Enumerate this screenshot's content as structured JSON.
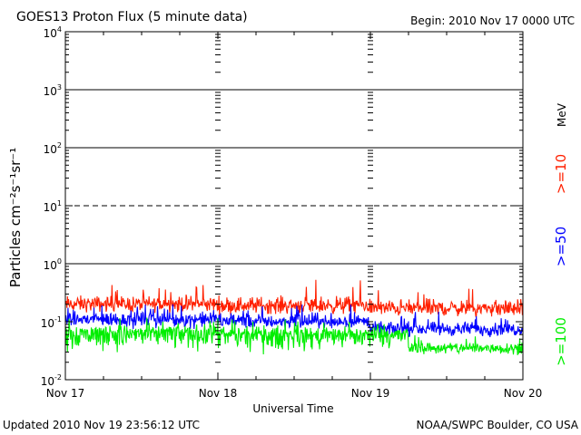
{
  "header": {
    "title": "GOES13 Proton Flux (5 minute data)",
    "begin": "Begin: 2010 Nov 17 0000 UTC"
  },
  "footer": {
    "updated": "Updated 2010 Nov 19 23:56:12 UTC",
    "credit": "NOAA/SWPC Boulder, CO USA"
  },
  "chart_data": {
    "type": "line",
    "title": "GOES13 Proton Flux (5 minute data)",
    "xlabel": "Universal Time",
    "ylabel": "Particles cm⁻²s⁻¹sr⁻¹",
    "yscale": "log",
    "ylim": [
      0.01,
      10000
    ],
    "xlim": [
      "2010-11-17T00:00Z",
      "2010-11-20T00:00Z"
    ],
    "x_ticks": [
      "Nov 17",
      "Nov 18",
      "Nov 19",
      "Nov 20"
    ],
    "y_ticks": [
      {
        "value": 0.01,
        "base": "10",
        "exp": "-2"
      },
      {
        "value": 0.1,
        "base": "10",
        "exp": "-1"
      },
      {
        "value": 1,
        "base": "10",
        "exp": "0"
      },
      {
        "value": 10,
        "base": "10",
        "exp": "1"
      },
      {
        "value": 100,
        "base": "10",
        "exp": "2"
      },
      {
        "value": 1000,
        "base": "10",
        "exp": "3"
      },
      {
        "value": 10000,
        "base": "10",
        "exp": "4"
      }
    ],
    "threshold_lines": [
      {
        "value": 1,
        "style": "solid"
      },
      {
        "value": 10,
        "style": "dashed"
      },
      {
        "value": 100,
        "style": "solid"
      },
      {
        "value": 1000,
        "style": "solid"
      }
    ],
    "units_label": "MeV",
    "series": [
      {
        "name": ">=10",
        "color": "#ff2000",
        "segments": [
          {
            "start": "Nov 17 00:00",
            "end": "Nov 18 00:00",
            "base": 0.2,
            "noise_lo": 0.13,
            "noise_hi": 0.32,
            "peak": 0.45
          },
          {
            "start": "Nov 18 00:00",
            "end": "Nov 19 00:00",
            "base": 0.19,
            "noise_lo": 0.12,
            "noise_hi": 0.32,
            "peak": 0.55
          },
          {
            "start": "Nov 19 00:00",
            "end": "Nov 20 00:00",
            "base": 0.17,
            "noise_lo": 0.11,
            "noise_hi": 0.28,
            "peak": 0.38
          }
        ]
      },
      {
        "name": ">=50",
        "color": "#0000ff",
        "segments": [
          {
            "start": "Nov 17 00:00",
            "end": "Nov 18 00:00",
            "base": 0.11,
            "noise_lo": 0.07,
            "noise_hi": 0.17,
            "peak": 0.22
          },
          {
            "start": "Nov 18 00:00",
            "end": "Nov 19 00:00",
            "base": 0.1,
            "noise_lo": 0.07,
            "noise_hi": 0.16,
            "peak": 0.2
          },
          {
            "start": "Nov 19 00:00",
            "end": "Nov 20 00:00",
            "base": 0.075,
            "noise_lo": 0.05,
            "noise_hi": 0.11,
            "peak": 0.15
          }
        ]
      },
      {
        "name": ">=100",
        "color": "#00ee00",
        "segments": [
          {
            "start": "Nov 17 00:00",
            "end": "Nov 18 00:00",
            "base": 0.065,
            "noise_lo": 0.025,
            "noise_hi": 0.1,
            "peak": 0.12
          },
          {
            "start": "Nov 18 00:00",
            "end": "Nov 19 00:00",
            "base": 0.06,
            "noise_lo": 0.025,
            "noise_hi": 0.09,
            "peak": 0.11
          },
          {
            "start": "Nov 19 00:00",
            "end": "Nov 19 06:00",
            "base": 0.06,
            "noise_lo": 0.03,
            "noise_hi": 0.09,
            "peak": 0.1
          },
          {
            "start": "Nov 19 06:00",
            "end": "Nov 20 00:00",
            "base": 0.035,
            "noise_lo": 0.025,
            "noise_hi": 0.05,
            "peak": 0.06
          }
        ]
      }
    ]
  }
}
